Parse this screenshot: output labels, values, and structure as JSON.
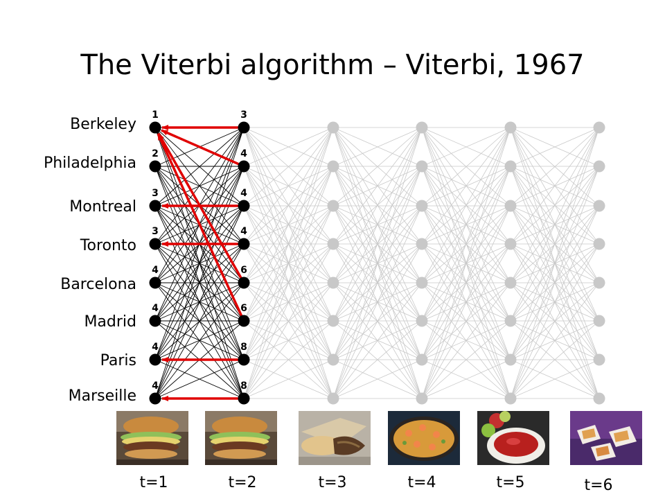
{
  "title": "The Viterbi algorithm – Viterbi, 1967",
  "states": [
    "Berkeley",
    "Philadelphia",
    "Montreal",
    "Toronto",
    "Barcelona",
    "Madrid",
    "Paris",
    "Marseille"
  ],
  "time_labels": [
    "t=1",
    "t=2",
    "t=3",
    "t=4",
    "t=5",
    "t=6"
  ],
  "scores_t1": [
    "1",
    "2",
    "3",
    "3",
    "4",
    "4",
    "4",
    "4"
  ],
  "scores_t2": [
    "3",
    "4",
    "4",
    "4",
    "6",
    "6",
    "8",
    "8"
  ],
  "best_predecessor_t2": [
    "Berkeley",
    "Berkeley",
    "Montreal",
    "Toronto",
    "Berkeley",
    "Berkeley",
    "Paris",
    "Marseille"
  ],
  "food_images": [
    "burger",
    "burger",
    "sandwich",
    "paella",
    "gazpacho",
    "pizza-bites"
  ],
  "colors": {
    "active": "#000000",
    "inactive": "#c8c8c8",
    "backpointer": "#e00000"
  }
}
